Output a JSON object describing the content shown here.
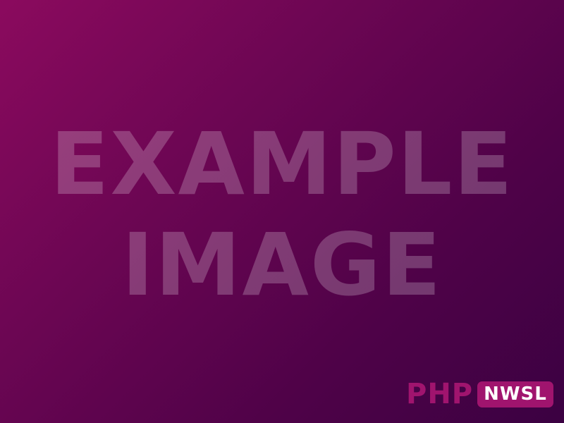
{
  "placeholder": {
    "line1": "EXAMPLE",
    "line2": "IMAGE"
  },
  "logo": {
    "part1": "PHP",
    "part2": "NWSL"
  },
  "colors": {
    "gradient_start": "#8b0a5e",
    "gradient_end": "#3b0142",
    "logo_accent": "#a0146e"
  }
}
